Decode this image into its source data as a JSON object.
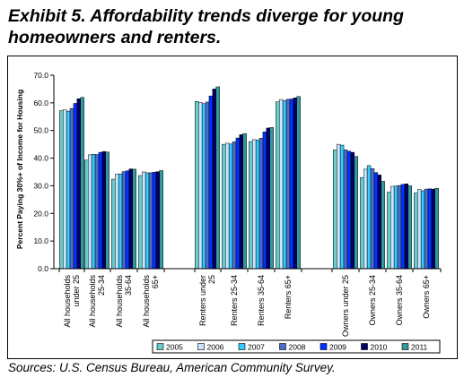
{
  "title": "Exhibit 5. Affordability trends diverge for young homeowners and renters.",
  "source": "Sources: U.S. Census Bureau, American Community Survey.",
  "chart_data": {
    "type": "bar",
    "title": "Exhibit 5. Affordability trends diverge for young homeowners and renters.",
    "xlabel": "",
    "ylabel": "Percent Paying 30%+ of Income for Housing",
    "ylim": [
      0,
      70
    ],
    "yticks": [
      "0.0",
      "10.0",
      "20.0",
      "30.0",
      "40.0",
      "50.0",
      "60.0",
      "70.0"
    ],
    "grid": false,
    "legend_position": "bottom",
    "categories": [
      "All households under 25",
      "All households 25-34",
      "All households 35-64",
      "All households 65+",
      "Renters under 25",
      "Renters 25-34",
      "Renters 35-64",
      "Renters 65+",
      "Owners under 25",
      "Owners 25-34",
      "Owners 35-64",
      "Owners 65+"
    ],
    "series": [
      {
        "name": "2005",
        "color": "#66cccc",
        "values": [
          57.2,
          39.3,
          32.4,
          33.7,
          60.5,
          45.0,
          46.0,
          60.4,
          43.0,
          33.0,
          27.7,
          27.4
        ]
      },
      {
        "name": "2006",
        "color": "#cce6ff",
        "values": [
          57.5,
          41.2,
          34.2,
          35.0,
          60.2,
          45.4,
          46.7,
          61.2,
          45.0,
          36.0,
          29.8,
          28.7
        ]
      },
      {
        "name": "2007",
        "color": "#33ccff",
        "values": [
          57.0,
          41.4,
          34.3,
          34.7,
          59.7,
          45.1,
          46.6,
          60.8,
          44.7,
          37.3,
          29.9,
          28.2
        ]
      },
      {
        "name": "2008",
        "color": "#4d6ecc",
        "values": [
          58.0,
          41.3,
          35.1,
          34.7,
          60.3,
          45.9,
          47.2,
          61.3,
          43.0,
          36.2,
          30.1,
          28.8
        ]
      },
      {
        "name": "2009",
        "color": "#0033ff",
        "values": [
          59.8,
          42.1,
          35.4,
          34.9,
          62.5,
          47.3,
          49.5,
          61.4,
          42.5,
          34.8,
          30.5,
          28.9
        ]
      },
      {
        "name": "2010",
        "color": "#000066",
        "values": [
          61.5,
          42.4,
          36.1,
          35.1,
          65.0,
          48.5,
          50.9,
          61.8,
          42.1,
          33.9,
          30.7,
          28.8
        ]
      },
      {
        "name": "2011",
        "color": "#339999",
        "values": [
          62.0,
          42.2,
          36.0,
          35.5,
          65.8,
          48.9,
          51.1,
          62.3,
          40.6,
          31.6,
          30.0,
          29.1
        ]
      }
    ]
  }
}
